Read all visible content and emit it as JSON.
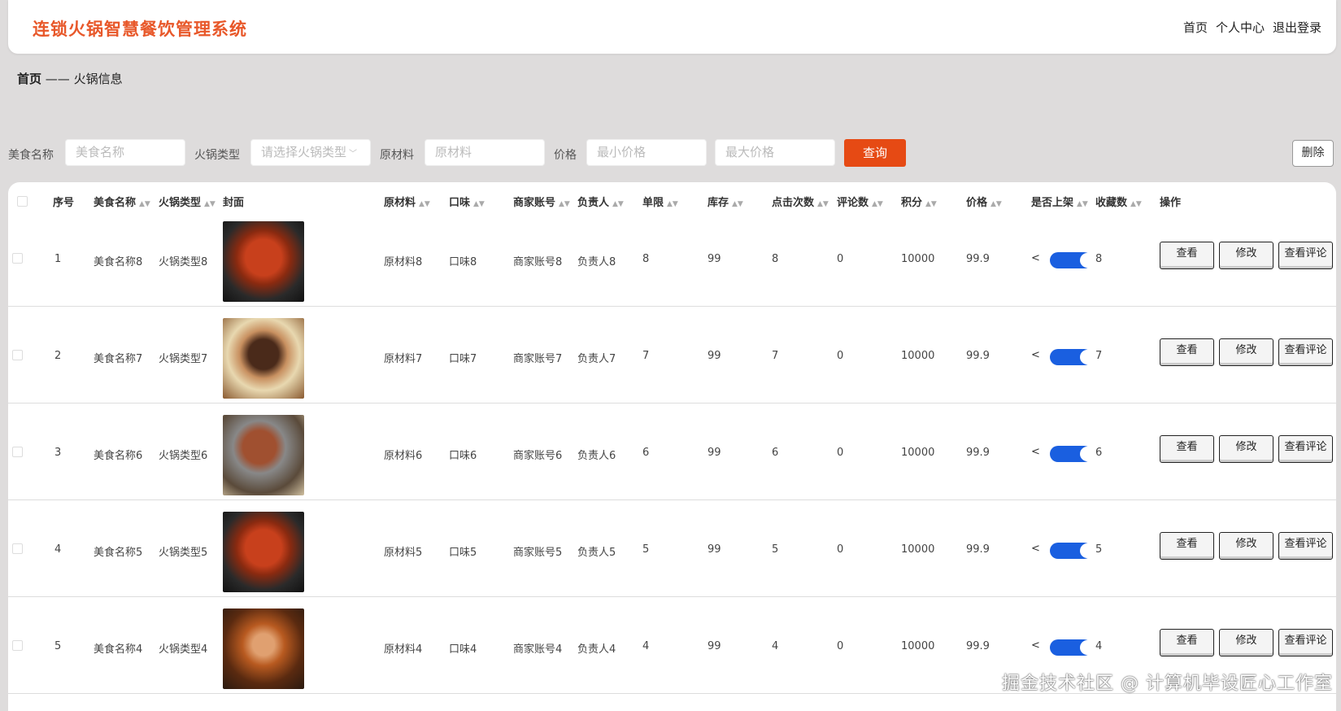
{
  "header": {
    "title": "连锁火锅智慧餐饮管理系统",
    "nav": [
      "首页",
      "个人中心",
      "退出登录"
    ]
  },
  "breadcrumb": {
    "home": "首页",
    "sep": "——",
    "current": "火锅信息"
  },
  "search": {
    "name_label": "美食名称",
    "name_placeholder": "美食名称",
    "type_label": "火锅类型",
    "type_placeholder": "请选择火锅类型",
    "material_label": "原材料",
    "material_placeholder": "原材料",
    "price_label": "价格",
    "min_placeholder": "最小价格",
    "max_placeholder": "最大价格",
    "query_label": "查询"
  },
  "delete_label": "删除",
  "table": {
    "columns": [
      "序号",
      "美食名称",
      "火锅类型",
      "封面",
      "原材料",
      "口味",
      "商家账号",
      "负责人",
      "单限",
      "库存",
      "点击次数",
      "评论数",
      "积分",
      "价格",
      "是否上架",
      "收藏数",
      "操作"
    ],
    "actions": [
      "查看",
      "修改",
      "查看评论"
    ],
    "rows": [
      {
        "no": "1",
        "name": "美食名称8",
        "type": "火锅类型8",
        "material": "原材料8",
        "taste": "口味8",
        "account": "商家账号8",
        "owner": "负责人8",
        "limit": "8",
        "stock": "99",
        "clicks": "8",
        "comments": "0",
        "points": "10000",
        "price": "99.9",
        "on_sale": true,
        "favorites": "8"
      },
      {
        "no": "2",
        "name": "美食名称7",
        "type": "火锅类型7",
        "material": "原材料7",
        "taste": "口味7",
        "account": "商家账号7",
        "owner": "负责人7",
        "limit": "7",
        "stock": "99",
        "clicks": "7",
        "comments": "0",
        "points": "10000",
        "price": "99.9",
        "on_sale": true,
        "favorites": "7"
      },
      {
        "no": "3",
        "name": "美食名称6",
        "type": "火锅类型6",
        "material": "原材料6",
        "taste": "口味6",
        "account": "商家账号6",
        "owner": "负责人6",
        "limit": "6",
        "stock": "99",
        "clicks": "6",
        "comments": "0",
        "points": "10000",
        "price": "99.9",
        "on_sale": true,
        "favorites": "6"
      },
      {
        "no": "4",
        "name": "美食名称5",
        "type": "火锅类型5",
        "material": "原材料5",
        "taste": "口味5",
        "account": "商家账号5",
        "owner": "负责人5",
        "limit": "5",
        "stock": "99",
        "clicks": "5",
        "comments": "0",
        "points": "10000",
        "price": "99.9",
        "on_sale": true,
        "favorites": "5"
      },
      {
        "no": "5",
        "name": "美食名称4",
        "type": "火锅类型4",
        "material": "原材料4",
        "taste": "口味4",
        "account": "商家账号4",
        "owner": "负责人4",
        "limit": "4",
        "stock": "99",
        "clicks": "4",
        "comments": "0",
        "points": "10000",
        "price": "99.9",
        "on_sale": true,
        "favorites": "4"
      }
    ]
  },
  "watermark": "掘金技术社区 @ 计算机毕设匠心工作室",
  "colors": {
    "brand": "#e8582a",
    "query": "#e64a14",
    "toggle": "#1a5fe0"
  }
}
